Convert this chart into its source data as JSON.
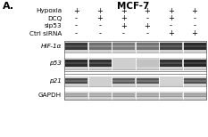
{
  "title": "MCF-7",
  "panel_label": "A.",
  "row_labels": [
    "Hypoxia",
    "DCQ",
    "sip53",
    "Ctrl siRNA"
  ],
  "row_signs": [
    [
      "+",
      "+",
      "+",
      "+",
      "+",
      "+"
    ],
    [
      "-",
      "+",
      "+",
      "-",
      "+",
      "-"
    ],
    [
      "-",
      "-",
      "+",
      "+",
      "-",
      "-"
    ],
    [
      "-",
      "-",
      "-",
      "-",
      "+",
      "+"
    ]
  ],
  "band_labels": [
    "HIF-1α",
    "p53",
    "p21",
    "GAPDH"
  ],
  "n_lanes": 6,
  "bands": {
    "HIF-1α": [
      0.82,
      0.6,
      0.55,
      0.58,
      0.78,
      0.88
    ],
    "p53": [
      0.88,
      0.85,
      0.2,
      0.25,
      0.85,
      0.9
    ],
    "p21": [
      0.75,
      0.2,
      0.68,
      0.7,
      0.18,
      0.72
    ],
    "GAPDH": [
      0.45,
      0.42,
      0.45,
      0.44,
      0.43,
      0.46
    ]
  },
  "blot_bg": "#c8c8c8",
  "title_fontsize": 7.5,
  "label_fontsize": 5.2,
  "sign_fontsize": 6.0,
  "panel_fontsize": 8
}
